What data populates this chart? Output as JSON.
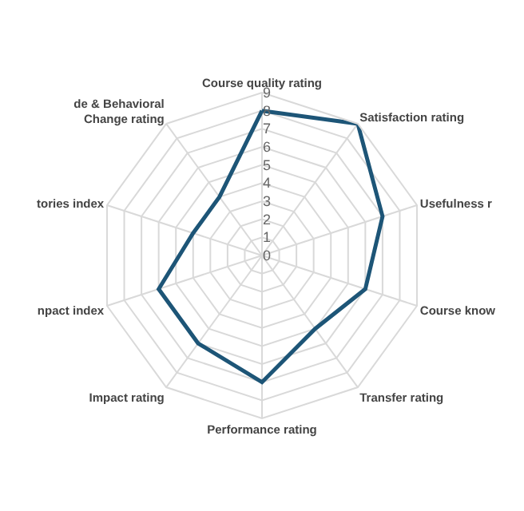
{
  "chart_data": {
    "type": "radar",
    "categories": [
      "Course quality rating",
      "Satisfaction rating",
      "Usefulness r",
      "Course know",
      "Transfer rating",
      "Performance rating",
      "Impact rating",
      "npact index",
      "tories index",
      "de & Behavioral Change rating"
    ],
    "series": [
      {
        "color": "#1d5577",
        "values": [
          8,
          9,
          7,
          6,
          5,
          7,
          6,
          6,
          4,
          4
        ]
      }
    ],
    "ylim": [
      0,
      9
    ],
    "yticks": [
      0,
      1,
      2,
      3,
      4,
      5,
      6,
      7,
      8,
      9
    ],
    "grid": true,
    "legend": false,
    "marker": "none",
    "line_style": "solid"
  }
}
